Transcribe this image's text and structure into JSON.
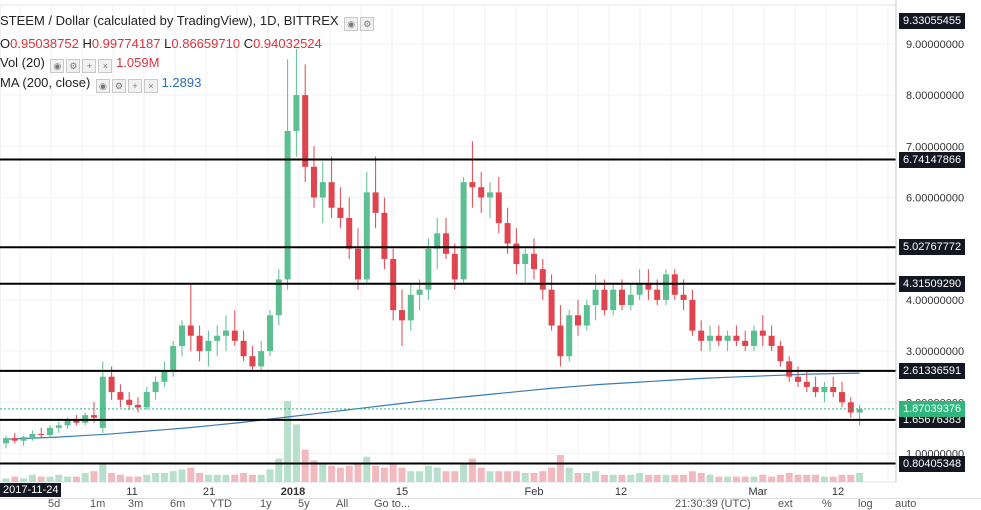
{
  "header": {
    "title": "STEEM / Dollar (calculated by TradingView), 1D, BITTREX",
    "ohlc": {
      "o_label": "O",
      "o": "0.95038752",
      "h_label": "H",
      "h": "0.99774187",
      "l_label": "L",
      "l": "0.86659710",
      "c_label": "C",
      "c": "0.94032524"
    },
    "vol_label": "Vol (20)",
    "vol_value": "1.059M",
    "ma_label": "MA (200, close)",
    "ma_value": "1.2893"
  },
  "colors": {
    "up": "#5bbf92",
    "down": "#e0454f",
    "ma": "#3b7ab3",
    "level": "#000000",
    "vol_up": "#b7dfcb",
    "vol_down": "#f2b9bf",
    "last_price": "#2eb67d"
  },
  "chart_data": {
    "type": "candlestick",
    "title": "STEEM / Dollar (calculated by TradingView), 1D, BITTREX",
    "y_ticks": [
      "9.00000000",
      "8.00000000",
      "7.00000000",
      "6.00000000",
      "4.00000000",
      "3.00000000",
      "2.00000000",
      "1.00000000"
    ],
    "x_ticks": [
      "11",
      "21",
      "2018",
      "15",
      "Feb",
      "12",
      "Mar",
      "12"
    ],
    "horizontal_levels": [
      "6.74147866",
      "5.02767772",
      "4.31509290",
      "2.61336591",
      "1.65676383",
      "0.80405348"
    ],
    "top_price_label": "9.33055455",
    "last_price": "1.87039376",
    "start_date_label": "2017-11-24",
    "ma_200_values": [
      1.28,
      1.3,
      1.32,
      1.35,
      1.38,
      1.42,
      1.46,
      1.5,
      1.55,
      1.6,
      1.66,
      1.72,
      1.78,
      1.84,
      1.9,
      1.96,
      2.02,
      2.07,
      2.12,
      2.17,
      2.22,
      2.27,
      2.31,
      2.35,
      2.38,
      2.41,
      2.44,
      2.47,
      2.49,
      2.51,
      2.53,
      2.55,
      2.56,
      2.57
    ],
    "candles": [
      [
        1.2,
        1.35,
        1.1,
        1.3
      ],
      [
        1.3,
        1.4,
        1.2,
        1.25
      ],
      [
        1.25,
        1.35,
        1.15,
        1.32
      ],
      [
        1.32,
        1.45,
        1.25,
        1.38
      ],
      [
        1.38,
        1.5,
        1.3,
        1.36
      ],
      [
        1.36,
        1.55,
        1.3,
        1.5
      ],
      [
        1.5,
        1.62,
        1.4,
        1.55
      ],
      [
        1.55,
        1.7,
        1.48,
        1.66
      ],
      [
        1.66,
        1.75,
        1.55,
        1.6
      ],
      [
        1.6,
        1.8,
        1.55,
        1.75
      ],
      [
        1.75,
        2.0,
        1.6,
        1.7
      ],
      [
        1.5,
        2.8,
        1.4,
        2.5
      ],
      [
        2.5,
        2.7,
        2.05,
        2.2
      ],
      [
        2.2,
        2.35,
        1.9,
        2.05
      ],
      [
        2.05,
        2.2,
        1.85,
        1.95
      ],
      [
        1.95,
        2.1,
        1.8,
        1.9
      ],
      [
        1.9,
        2.3,
        1.85,
        2.2
      ],
      [
        2.2,
        2.5,
        2.05,
        2.4
      ],
      [
        2.4,
        2.8,
        2.3,
        2.6
      ],
      [
        2.6,
        3.2,
        2.5,
        3.1
      ],
      [
        3.1,
        3.6,
        2.9,
        3.5
      ],
      [
        3.5,
        4.3,
        3.0,
        3.3
      ],
      [
        3.3,
        3.5,
        2.8,
        3.0
      ],
      [
        3.0,
        3.4,
        2.7,
        3.2
      ],
      [
        3.2,
        3.5,
        2.9,
        3.3
      ],
      [
        3.3,
        3.7,
        3.0,
        3.4
      ],
      [
        3.4,
        3.8,
        3.1,
        3.2
      ],
      [
        3.2,
        3.4,
        2.8,
        2.9
      ],
      [
        2.9,
        3.1,
        2.6,
        2.7
      ],
      [
        2.7,
        3.2,
        2.6,
        3.0
      ],
      [
        3.0,
        3.8,
        2.9,
        3.7
      ],
      [
        3.7,
        4.6,
        3.5,
        4.4
      ],
      [
        4.4,
        8.7,
        4.2,
        7.3
      ],
      [
        7.3,
        8.9,
        6.8,
        8.0
      ],
      [
        8.0,
        8.6,
        6.3,
        6.6
      ],
      [
        6.6,
        7.0,
        5.8,
        6.0
      ],
      [
        6.0,
        6.7,
        5.5,
        6.3
      ],
      [
        6.3,
        6.8,
        5.6,
        5.8
      ],
      [
        5.8,
        6.2,
        5.4,
        5.6
      ],
      [
        5.6,
        6.0,
        4.8,
        5.0
      ],
      [
        5.0,
        5.4,
        4.2,
        4.4
      ],
      [
        4.4,
        6.5,
        4.3,
        6.1
      ],
      [
        6.1,
        6.8,
        5.4,
        5.7
      ],
      [
        5.7,
        6.0,
        4.6,
        4.8
      ],
      [
        4.8,
        5.0,
        3.6,
        3.8
      ],
      [
        3.8,
        4.2,
        3.1,
        3.6
      ],
      [
        3.6,
        4.3,
        3.4,
        4.1
      ],
      [
        4.1,
        4.4,
        3.8,
        4.2
      ],
      [
        4.2,
        5.2,
        4.0,
        5.0
      ],
      [
        5.0,
        5.6,
        4.6,
        5.3
      ],
      [
        5.3,
        5.6,
        4.8,
        4.9
      ],
      [
        4.9,
        5.1,
        4.2,
        4.4
      ],
      [
        4.4,
        6.4,
        4.3,
        6.3
      ],
      [
        6.3,
        7.1,
        5.8,
        6.2
      ],
      [
        6.2,
        6.5,
        5.7,
        6.0
      ],
      [
        6.0,
        6.3,
        5.6,
        6.1
      ],
      [
        6.1,
        6.4,
        5.3,
        5.5
      ],
      [
        5.5,
        5.8,
        4.9,
        5.1
      ],
      [
        5.1,
        5.4,
        4.5,
        4.7
      ],
      [
        4.7,
        5.0,
        4.3,
        4.9
      ],
      [
        4.9,
        5.2,
        4.4,
        4.6
      ],
      [
        4.6,
        4.8,
        4.0,
        4.2
      ],
      [
        4.2,
        4.5,
        3.4,
        3.5
      ],
      [
        3.5,
        3.9,
        2.7,
        2.9
      ],
      [
        2.9,
        3.8,
        2.8,
        3.7
      ],
      [
        3.7,
        4.0,
        3.3,
        3.5
      ],
      [
        3.5,
        4.0,
        3.4,
        3.9
      ],
      [
        3.9,
        4.5,
        3.6,
        4.2
      ],
      [
        4.2,
        4.4,
        3.7,
        3.8
      ],
      [
        3.8,
        4.3,
        3.7,
        4.2
      ],
      [
        4.2,
        4.4,
        3.8,
        3.9
      ],
      [
        3.9,
        4.3,
        3.8,
        4.1
      ],
      [
        4.1,
        4.6,
        4.0,
        4.3
      ],
      [
        4.3,
        4.6,
        4.0,
        4.2
      ],
      [
        4.2,
        4.4,
        3.9,
        4.0
      ],
      [
        4.0,
        4.6,
        3.9,
        4.5
      ],
      [
        4.5,
        4.6,
        4.0,
        4.1
      ],
      [
        4.1,
        4.4,
        3.8,
        4.0
      ],
      [
        4.0,
        4.2,
        3.3,
        3.4
      ],
      [
        3.4,
        3.6,
        3.0,
        3.2
      ],
      [
        3.2,
        3.5,
        3.0,
        3.3
      ],
      [
        3.3,
        3.5,
        3.1,
        3.2
      ],
      [
        3.2,
        3.4,
        3.0,
        3.3
      ],
      [
        3.3,
        3.5,
        3.1,
        3.2
      ],
      [
        3.2,
        3.4,
        3.0,
        3.1
      ],
      [
        3.1,
        3.5,
        3.0,
        3.4
      ],
      [
        3.4,
        3.7,
        3.1,
        3.3
      ],
      [
        3.3,
        3.5,
        3.0,
        3.1
      ],
      [
        3.1,
        3.2,
        2.7,
        2.8
      ],
      [
        2.8,
        2.9,
        2.4,
        2.5
      ],
      [
        2.5,
        2.7,
        2.3,
        2.4
      ],
      [
        2.4,
        2.6,
        2.2,
        2.3
      ],
      [
        2.3,
        2.5,
        2.1,
        2.2
      ],
      [
        2.2,
        2.4,
        2.0,
        2.3
      ],
      [
        2.3,
        2.5,
        2.1,
        2.2
      ],
      [
        2.2,
        2.4,
        1.9,
        2.0
      ],
      [
        2.0,
        2.1,
        1.7,
        1.8
      ],
      [
        1.8,
        1.95,
        1.55,
        1.87
      ]
    ],
    "volume_relative": [
      0.2,
      0.3,
      0.2,
      0.4,
      0.3,
      0.3,
      0.4,
      0.3,
      0.3,
      0.5,
      0.6,
      1.0,
      0.5,
      0.4,
      0.3,
      0.3,
      0.4,
      0.5,
      0.5,
      0.6,
      0.7,
      0.8,
      0.5,
      0.4,
      0.4,
      0.4,
      0.4,
      0.5,
      0.4,
      0.4,
      0.7,
      1.3,
      4.5,
      3.2,
      1.8,
      1.2,
      1.0,
      0.9,
      0.8,
      0.9,
      1.0,
      1.4,
      0.9,
      0.8,
      1.0,
      0.8,
      0.6,
      0.6,
      0.9,
      0.8,
      0.6,
      0.6,
      1.0,
      1.3,
      0.8,
      0.6,
      0.6,
      0.6,
      0.6,
      0.5,
      0.5,
      0.6,
      0.8,
      1.5,
      0.8,
      0.5,
      0.5,
      0.6,
      0.4,
      0.4,
      0.4,
      0.4,
      0.5,
      0.4,
      0.4,
      0.4,
      0.4,
      0.4,
      0.6,
      0.5,
      0.4,
      0.3,
      0.3,
      0.3,
      0.3,
      0.3,
      0.4,
      0.3,
      0.4,
      0.5,
      0.4,
      0.4,
      0.4,
      0.3,
      0.3,
      0.4,
      0.4,
      0.5
    ]
  },
  "toolbar": {
    "items": [
      "5d",
      "1m",
      "3m",
      "6m",
      "YTD",
      "1y",
      "5y",
      "All",
      "Go to..."
    ],
    "time": "21:30:39 (UTC)",
    "right_items": [
      "ext",
      "%",
      "log",
      "auto"
    ]
  }
}
